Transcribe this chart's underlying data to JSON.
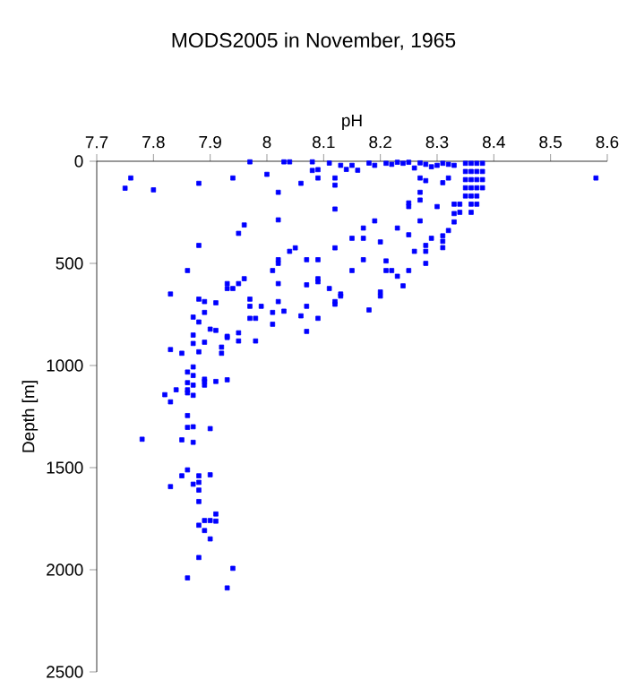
{
  "chart_data": {
    "type": "scatter",
    "title": "MODS2005 in November, 1965",
    "xlabel": "pH",
    "ylabel": "Depth [m]",
    "color": "#0000ff",
    "marker": "square",
    "xlim": [
      7.7,
      8.6
    ],
    "ylim": [
      2500,
      0
    ],
    "xticks": [
      7.7,
      7.8,
      7.9,
      8,
      8.1,
      8.2,
      8.3,
      8.4,
      8.5,
      8.6
    ],
    "yticks": [
      0,
      500,
      1000,
      1500,
      2000,
      2500
    ],
    "x": [
      7.76,
      7.75,
      7.8,
      7.88,
      7.94,
      7.97,
      8.0,
      8.03,
      8.04,
      8.06,
      8.02,
      8.08,
      8.09,
      8.08,
      8.11,
      8.13,
      8.09,
      8.12,
      8.12,
      8.14,
      8.16,
      8.18,
      8.15,
      8.19,
      8.21,
      8.22,
      8.24,
      8.26,
      8.28,
      8.29,
      8.31,
      8.27,
      8.28,
      8.31,
      8.32,
      8.58,
      8.35,
      8.36,
      8.37,
      8.38,
      8.35,
      8.36,
      8.37,
      8.38,
      8.35,
      8.36,
      8.37,
      8.38,
      8.35,
      8.36,
      8.37,
      8.38,
      8.35,
      8.36,
      8.37,
      8.34,
      8.36,
      8.37,
      8.34,
      8.36,
      8.33,
      8.3,
      8.32,
      8.25,
      8.23,
      8.27,
      8.12,
      8.02,
      8.27,
      8.25,
      8.25,
      8.27,
      8.3,
      8.33,
      8.33,
      8.33,
      8.32,
      8.27,
      8.19,
      8.17,
      8.23,
      8.2,
      8.17,
      8.15,
      8.25,
      8.29,
      8.31,
      8.31,
      8.28,
      8.31,
      8.28,
      8.26,
      8.28,
      8.25,
      8.22,
      8.21,
      8.21,
      8.24,
      8.23,
      8.2,
      8.17,
      8.15,
      8.12,
      8.09,
      8.09,
      8.09,
      8.07,
      8.07,
      8.05,
      8.04,
      8.02,
      8.02,
      8.01,
      7.96,
      7.95,
      7.88,
      7.86,
      7.95,
      7.94,
      7.93,
      7.93,
      7.96,
      8.02,
      8.11,
      8.13,
      8.13,
      8.12,
      8.12,
      8.18,
      8.2,
      8.07,
      8.02,
      8.01,
      8.03,
      8.06,
      8.09,
      8.07,
      8.01,
      7.99,
      7.97,
      7.97,
      7.98,
      7.97,
      7.91,
      7.89,
      7.88,
      7.83,
      7.89,
      7.87,
      7.88,
      7.9,
      7.91,
      7.93,
      7.93,
      7.95,
      7.95,
      7.98,
      7.89,
      7.87,
      7.87,
      7.92,
      7.92,
      7.88,
      7.85,
      7.83,
      7.87,
      7.86,
      7.87,
      7.86,
      7.89,
      7.89,
      7.91,
      7.93,
      7.87,
      7.89,
      7.84,
      7.86,
      7.82,
      7.86,
      7.87,
      7.83,
      7.86,
      7.86,
      7.87,
      7.9,
      7.78,
      7.85,
      7.87,
      7.86,
      7.85,
      7.88,
      7.9,
      7.87,
      7.83,
      7.88,
      7.88,
      7.88,
      7.91,
      7.89,
      7.9,
      7.91,
      7.88,
      7.89,
      7.9,
      7.88,
      7.94,
      7.86,
      7.93
    ],
    "values": [
      82,
      132,
      140,
      108,
      82,
      3,
      64,
      3,
      3,
      108,
      152,
      3,
      41,
      45,
      9,
      20,
      82,
      82,
      117,
      40,
      44,
      9,
      20,
      20,
      10,
      15,
      10,
      33,
      15,
      27,
      10,
      82,
      95,
      105,
      82,
      82,
      10,
      10,
      10,
      10,
      50,
      50,
      50,
      50,
      90,
      90,
      90,
      90,
      130,
      130,
      130,
      130,
      170,
      170,
      170,
      210,
      210,
      210,
      250,
      250,
      20,
      20,
      15,
      5,
      5,
      8,
      234,
      287,
      152,
      204,
      222,
      190,
      222,
      210,
      256,
      297,
      339,
      292,
      292,
      327,
      327,
      395,
      377,
      377,
      360,
      377,
      365,
      392,
      412,
      423,
      441,
      441,
      500,
      535,
      535,
      488,
      535,
      610,
      563,
      640,
      482,
      535,
      424,
      482,
      575,
      590,
      482,
      605,
      424,
      441,
      482,
      500,
      535,
      312,
      353,
      412,
      535,
      599,
      623,
      599,
      623,
      575,
      599,
      623,
      650,
      660,
      687,
      700,
      728,
      660,
      710,
      687,
      740,
      734,
      757,
      769,
      833,
      798,
      710,
      675,
      710,
      769,
      769,
      693,
      687,
      675,
      650,
      740,
      763,
      787,
      822,
      828,
      857,
      863,
      840,
      880,
      880,
      886,
      851,
      892,
      910,
      940,
      933,
      940,
      922,
      1007,
      1032,
      1049,
      1084,
      1078,
      1067,
      1078,
      1070,
      1096,
      1096,
      1119,
      1119,
      1143,
      1134,
      1146,
      1178,
      1245,
      1303,
      1300,
      1309,
      1361,
      1364,
      1376,
      1511,
      1540,
      1540,
      1535,
      1581,
      1593,
      1572,
      1610,
      1666,
      1727,
      1759,
      1759,
      1762,
      1782,
      1808,
      1849,
      1940,
      1993,
      2040,
      2089
    ]
  }
}
